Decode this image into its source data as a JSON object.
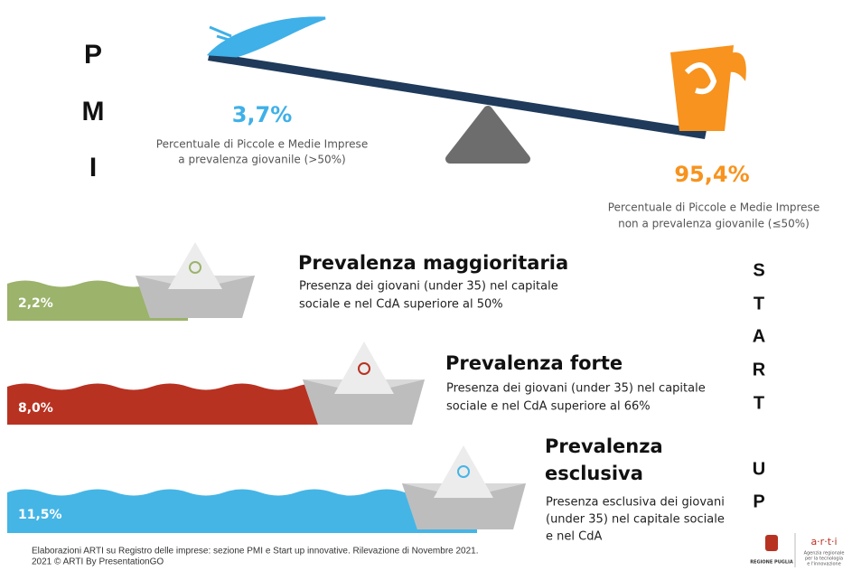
{
  "pmi": {
    "letters": [
      "P",
      "M",
      "I"
    ],
    "young": {
      "value": "3,7%",
      "caption": [
        "Percentuale di Piccole e Medie Imprese",
        "a prevalenza giovanile (>50%)"
      ]
    },
    "not_young": {
      "value": "95,4%",
      "caption": [
        "Percentuale di Piccole e Medie Imprese",
        "non a prevalenza giovanile (≤50%)"
      ]
    }
  },
  "startup": {
    "letters": [
      "S",
      "T",
      "A",
      "R",
      "T",
      "U",
      "P"
    ],
    "levels": [
      {
        "value": "2,2%",
        "title": [
          "Prevalenza maggioritaria"
        ],
        "description": [
          "Presenza dei giovani (under 35) nel capitale",
          "sociale e nel CdA superiore al 50%"
        ]
      },
      {
        "value": "8,0%",
        "title": [
          "Prevalenza forte"
        ],
        "description": [
          "Presenza dei giovani (under 35) nel capitale",
          "sociale e nel CdA superiore al 66%"
        ]
      },
      {
        "value": "11,5%",
        "title": [
          "Prevalenza",
          "esclusiva"
        ],
        "description": [
          "Presenza esclusiva dei giovani",
          "(under 35) nel capitale sociale",
          "e nel CdA"
        ]
      }
    ]
  },
  "footer": {
    "lines": [
      "Elaborazioni ARTI su Registro delle imprese: sezione PMI e Start up innovative. Rilevazione di Novembre 2021.",
      "2021 © ARTI By PresentationGO"
    ]
  },
  "logos": {
    "regione": "REGIONE PUGLIA",
    "arti": "a·r·t·i",
    "arti_subtitle": [
      "Agenzia regionale",
      "per la tecnologia",
      "e l'innovazione"
    ]
  }
}
